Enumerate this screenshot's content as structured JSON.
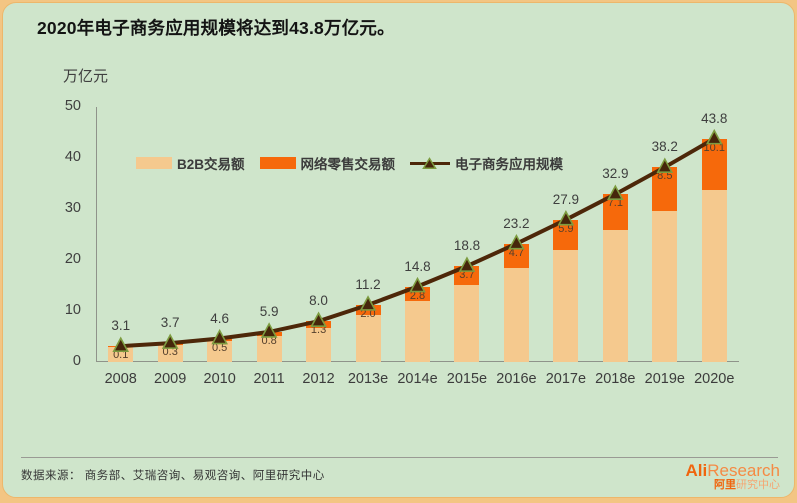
{
  "title": "2020年电子商务应用规模将达到43.8万亿元。",
  "chart_data": {
    "type": "bar",
    "subtype": "stacked-bar-with-line",
    "title": "2020年电子商务应用规模将达到43.8万亿元。",
    "y_axis_title": "万亿元",
    "ylim": [
      0,
      50
    ],
    "y_ticks": [
      0,
      10,
      20,
      30,
      40,
      50
    ],
    "grid": false,
    "legend_position": "inside-top-left",
    "categories": [
      "2008",
      "2009",
      "2010",
      "2011",
      "2012",
      "2013e",
      "2014e",
      "2015e",
      "2016e",
      "2017e",
      "2018e",
      "2019e",
      "2020e"
    ],
    "series": [
      {
        "name": "B2B交易额",
        "type": "bar",
        "stack": "bottom",
        "color": "#f5c98e",
        "values": [
          3.0,
          3.4,
          4.1,
          5.1,
          6.7,
          9.2,
          12.0,
          15.1,
          18.5,
          22.0,
          25.8,
          29.7,
          33.7
        ],
        "note": "unlabeled in chart; equals total minus retail"
      },
      {
        "name": "网络零售交易额",
        "type": "bar",
        "stack": "top",
        "color": "#f6690b",
        "values": [
          0.1,
          0.3,
          0.5,
          0.8,
          1.3,
          2.0,
          2.8,
          3.7,
          4.7,
          5.9,
          7.1,
          8.5,
          10.1
        ]
      },
      {
        "name": "电子商务应用规模",
        "type": "line",
        "color": "#4d2709",
        "marker": "triangle",
        "marker_fill": "#46260b",
        "marker_stroke": "#7d9c40",
        "values": [
          3.1,
          3.7,
          4.6,
          5.9,
          8.0,
          11.2,
          14.8,
          18.8,
          23.2,
          27.9,
          32.9,
          38.2,
          43.8
        ]
      }
    ]
  },
  "footer": {
    "source": "数据来源： 商务部、艾瑞咨询、易观咨询、阿里研究中心",
    "logo_en_bold": "Ali",
    "logo_en_light": "Research",
    "logo_cn_bold": "阿里",
    "logo_cn_light": "研究中心"
  },
  "colors": {
    "frame_bg": "#f3c583",
    "card_bg": "#cfe5cb",
    "bar_b2b": "#f5c98e",
    "bar_retail": "#f6690b",
    "line": "#4d2709",
    "marker_fill": "#46260b",
    "marker_stroke": "#7d9c40",
    "axis": "#8f938a",
    "logo_orange": "#f0650e"
  }
}
